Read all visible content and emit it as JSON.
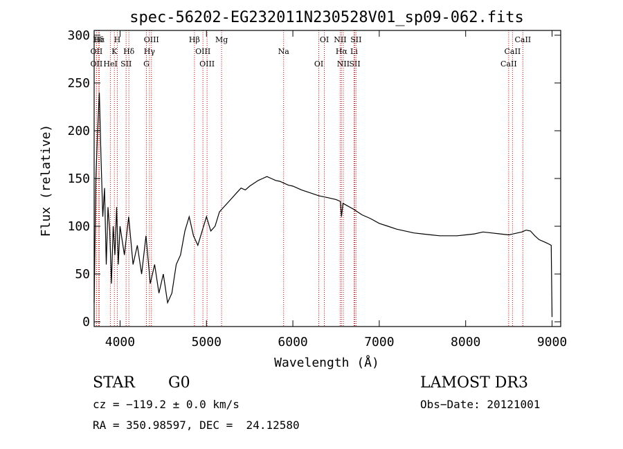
{
  "chart_data": {
    "type": "line",
    "title": "spec-56202-EG232011N230528V01_sp09-062.fits",
    "xlabel": "Wavelength (Å)",
    "ylabel": "Flux (relative)",
    "xlim": [
      3700,
      9100
    ],
    "ylim": [
      -5,
      305
    ],
    "xticks": [
      4000,
      5000,
      6000,
      7000,
      8000,
      9000
    ],
    "yticks": [
      0,
      50,
      100,
      150,
      200,
      250,
      300
    ],
    "xtick_labels": [
      "4000",
      "5000",
      "6000",
      "7000",
      "8000",
      "9000"
    ],
    "ytick_labels": [
      "0",
      "50",
      "100",
      "150",
      "200",
      "250",
      "300"
    ],
    "series": [
      {
        "name": "flux",
        "color": "#000000",
        "x": [
          3700,
          3720,
          3740,
          3760,
          3780,
          3800,
          3820,
          3840,
          3860,
          3880,
          3900,
          3920,
          3940,
          3960,
          3980,
          4000,
          4050,
          4100,
          4150,
          4200,
          4250,
          4300,
          4350,
          4400,
          4450,
          4500,
          4550,
          4600,
          4650,
          4700,
          4750,
          4800,
          4850,
          4900,
          4950,
          5000,
          5050,
          5100,
          5150,
          5200,
          5250,
          5300,
          5350,
          5400,
          5450,
          5500,
          5550,
          5600,
          5650,
          5700,
          5750,
          5800,
          5850,
          5900,
          5950,
          6000,
          6100,
          6200,
          6300,
          6400,
          6500,
          6550,
          6563,
          6580,
          6600,
          6700,
          6800,
          6900,
          7000,
          7100,
          7200,
          7300,
          7400,
          7500,
          7600,
          7700,
          7800,
          7900,
          8000,
          8100,
          8200,
          8300,
          8400,
          8500,
          8550,
          8600,
          8650,
          8700,
          8750,
          8800,
          8850,
          8900,
          8950,
          8990,
          9000
        ],
        "y": [
          20,
          150,
          200,
          240,
          170,
          110,
          140,
          60,
          120,
          95,
          40,
          100,
          70,
          120,
          60,
          100,
          70,
          110,
          60,
          80,
          50,
          90,
          40,
          60,
          30,
          50,
          20,
          30,
          60,
          70,
          95,
          110,
          90,
          80,
          95,
          110,
          95,
          100,
          115,
          120,
          125,
          130,
          135,
          140,
          138,
          142,
          145,
          148,
          150,
          152,
          150,
          148,
          147,
          145,
          143,
          142,
          138,
          135,
          132,
          130,
          128,
          126,
          110,
          124,
          123,
          118,
          112,
          108,
          103,
          100,
          97,
          95,
          93,
          92,
          91,
          90,
          90,
          90,
          91,
          92,
          94,
          93,
          92,
          91,
          92,
          93,
          94,
          96,
          95,
          90,
          86,
          84,
          82,
          80,
          5
        ]
      }
    ],
    "line_markers": [
      {
        "label": "Hδ",
        "x": 3750
      },
      {
        "label": "OII",
        "x": 3727
      },
      {
        "label": "OII",
        "x": 3727
      },
      {
        "label": "Hε",
        "x": 3760
      },
      {
        "label": "K",
        "x": 3934
      },
      {
        "label": "HeI",
        "x": 3889
      },
      {
        "label": "H",
        "x": 3968
      },
      {
        "label": "Hδ",
        "x": 4102
      },
      {
        "label": "SII",
        "x": 4070
      },
      {
        "label": "OIII",
        "x": 4363
      },
      {
        "label": "Hγ",
        "x": 4340
      },
      {
        "label": "G",
        "x": 4305
      },
      {
        "label": "Hβ",
        "x": 4861
      },
      {
        "label": "OIII",
        "x": 4959
      },
      {
        "label": "OIII",
        "x": 5007
      },
      {
        "label": "Mg",
        "x": 5175
      },
      {
        "label": "Na",
        "x": 5893
      },
      {
        "label": "OI",
        "x": 6300
      },
      {
        "label": "OI",
        "x": 6364
      },
      {
        "label": "Hα",
        "x": 6563
      },
      {
        "label": "SII",
        "x": 6717
      },
      {
        "label": "NII",
        "x": 6548
      },
      {
        "label": "Li",
        "x": 6708
      },
      {
        "label": "NII",
        "x": 6584
      },
      {
        "label": "SII",
        "x": 6731
      },
      {
        "label": "CaII",
        "x": 8542
      },
      {
        "label": "CaII",
        "x": 8498
      },
      {
        "label": "CaII",
        "x": 8662
      }
    ]
  },
  "info": {
    "object_class": "STAR",
    "subclass": "G0",
    "survey": "LAMOST DR3",
    "cz": "cz = −119.2 ± 0.0 km/s",
    "obs_date": "Obs−Date: 20121001",
    "coords": "RA = 350.98597, DEC =  24.12580"
  },
  "colors": {
    "line": "#000000",
    "marker": "#c00000",
    "background": "#ffffff"
  }
}
